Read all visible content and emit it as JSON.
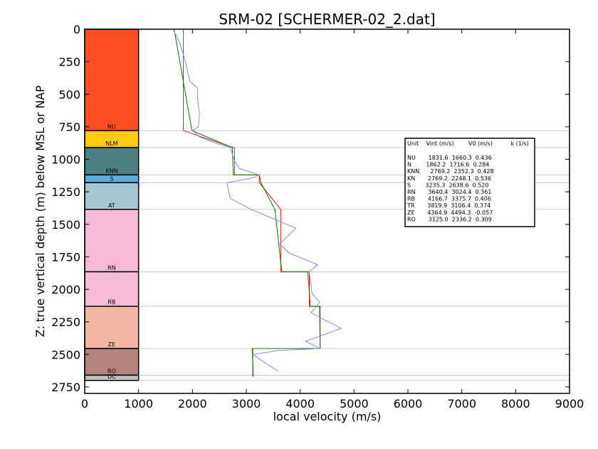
{
  "chart_data": {
    "type": "line",
    "title": "SRM-02 [SCHERMER-02_2.dat]",
    "xlabel": "local velocity (m/s)",
    "ylabel": "Z: true vertical depth (m) below MSL or NAP",
    "xlim": [
      0,
      9000
    ],
    "ylim": [
      2800,
      0
    ],
    "xticks": [
      0,
      1000,
      2000,
      3000,
      4000,
      5000,
      6000,
      7000,
      8000,
      9000
    ],
    "yticks": [
      0,
      250,
      500,
      750,
      1000,
      1250,
      1500,
      1750,
      2000,
      2250,
      2500,
      2750
    ],
    "grid": false,
    "units": [
      {
        "name": "NU",
        "top": 0,
        "bottom": 780,
        "color": "#ff4e22"
      },
      {
        "name": "NLM",
        "top": 780,
        "bottom": 910,
        "color": "#ffcc12"
      },
      {
        "name": "KNN",
        "top": 910,
        "bottom": 1120,
        "color": "#4f8182"
      },
      {
        "name": "S",
        "top": 1120,
        "bottom": 1180,
        "color": "#5aaee0"
      },
      {
        "name": "AT",
        "top": 1180,
        "bottom": 1385,
        "color": "#a6c6d4"
      },
      {
        "name": "RN",
        "top": 1385,
        "bottom": 1865,
        "color": "#f4b9d4"
      },
      {
        "name": "RB",
        "top": 1865,
        "bottom": 2130,
        "color": "#f4b9d4"
      },
      {
        "name": "ZE",
        "top": 2130,
        "bottom": 2455,
        "color": "#f1b7a3"
      },
      {
        "name": "RO",
        "top": 2455,
        "bottom": 2660,
        "color": "#b4857e"
      },
      {
        "name": "DC",
        "top": 2660,
        "bottom": 2700,
        "color": "#c0c0c0"
      }
    ],
    "boundary_depths": [
      780,
      910,
      1120,
      1180,
      1385,
      1865,
      2130,
      2455,
      2660,
      2700
    ],
    "series": [
      {
        "color": "#dd2222",
        "points": [
          [
            1830,
            0
          ],
          [
            1830,
            780
          ],
          [
            2760,
            910
          ],
          [
            2780,
            910
          ],
          [
            2780,
            1120
          ],
          [
            3240,
            1120
          ],
          [
            3240,
            1180
          ],
          [
            3640,
            1385
          ],
          [
            3640,
            1865
          ],
          [
            4170,
            1865
          ],
          [
            4170,
            2130
          ],
          [
            4370,
            2130
          ],
          [
            4370,
            2455
          ],
          [
            3120,
            2455
          ],
          [
            3120,
            2670
          ]
        ]
      },
      {
        "color": "#007700",
        "points": [
          [
            1660,
            0
          ],
          [
            1990,
            780
          ],
          [
            2740,
            910
          ],
          [
            2760,
            1120
          ],
          [
            3240,
            1120
          ],
          [
            3270,
            1180
          ],
          [
            3530,
            1385
          ],
          [
            3660,
            1865
          ],
          [
            4140,
            1865
          ],
          [
            4190,
            2130
          ],
          [
            4360,
            2130
          ],
          [
            4370,
            2455
          ],
          [
            3110,
            2455
          ],
          [
            3130,
            2670
          ]
        ]
      },
      {
        "color": "#8888ee",
        "points": [
          [
            1640,
            0
          ],
          [
            1760,
            100
          ],
          [
            1870,
            250
          ],
          [
            1950,
            400
          ],
          [
            2090,
            450
          ],
          [
            2100,
            550
          ],
          [
            2130,
            650
          ],
          [
            2110,
            750
          ],
          [
            2000,
            780
          ],
          [
            2140,
            830
          ],
          [
            2470,
            880
          ],
          [
            2700,
            910
          ],
          [
            2780,
            1010
          ],
          [
            2870,
            1070
          ],
          [
            3230,
            1120
          ],
          [
            3140,
            1140
          ],
          [
            2640,
            1180
          ],
          [
            2700,
            1300
          ],
          [
            3090,
            1385
          ],
          [
            3920,
            1530
          ],
          [
            3620,
            1650
          ],
          [
            3790,
            1720
          ],
          [
            4320,
            1810
          ],
          [
            4170,
            1865
          ],
          [
            4220,
            2030
          ],
          [
            4360,
            2100
          ],
          [
            4200,
            2180
          ],
          [
            4760,
            2300
          ],
          [
            4100,
            2400
          ],
          [
            4370,
            2455
          ],
          [
            3600,
            2470
          ],
          [
            3120,
            2500
          ],
          [
            3400,
            2580
          ],
          [
            3600,
            2630
          ]
        ]
      }
    ]
  },
  "table": {
    "header": "Unit    Vint (m/s)        V0 (m/s)          k (1/s)",
    "rows": [
      "NU       1831.6  1660.3  0.436",
      "N        1862.2  1716.6  0.284",
      "KNN      2769.2  2352.3  0.428",
      "KN       2769.2  2248.1  0.536",
      "S        3235.3  2638.6  0.520",
      "RN       3640.4  3024.4  0.361",
      "RB       4166.7  3375.7  0.406",
      "TR       3819.9  3106.4  0.374",
      "ZE       4364.9  4494.3  -0.057",
      "RO       3125.0  2336.2  0.309"
    ]
  }
}
